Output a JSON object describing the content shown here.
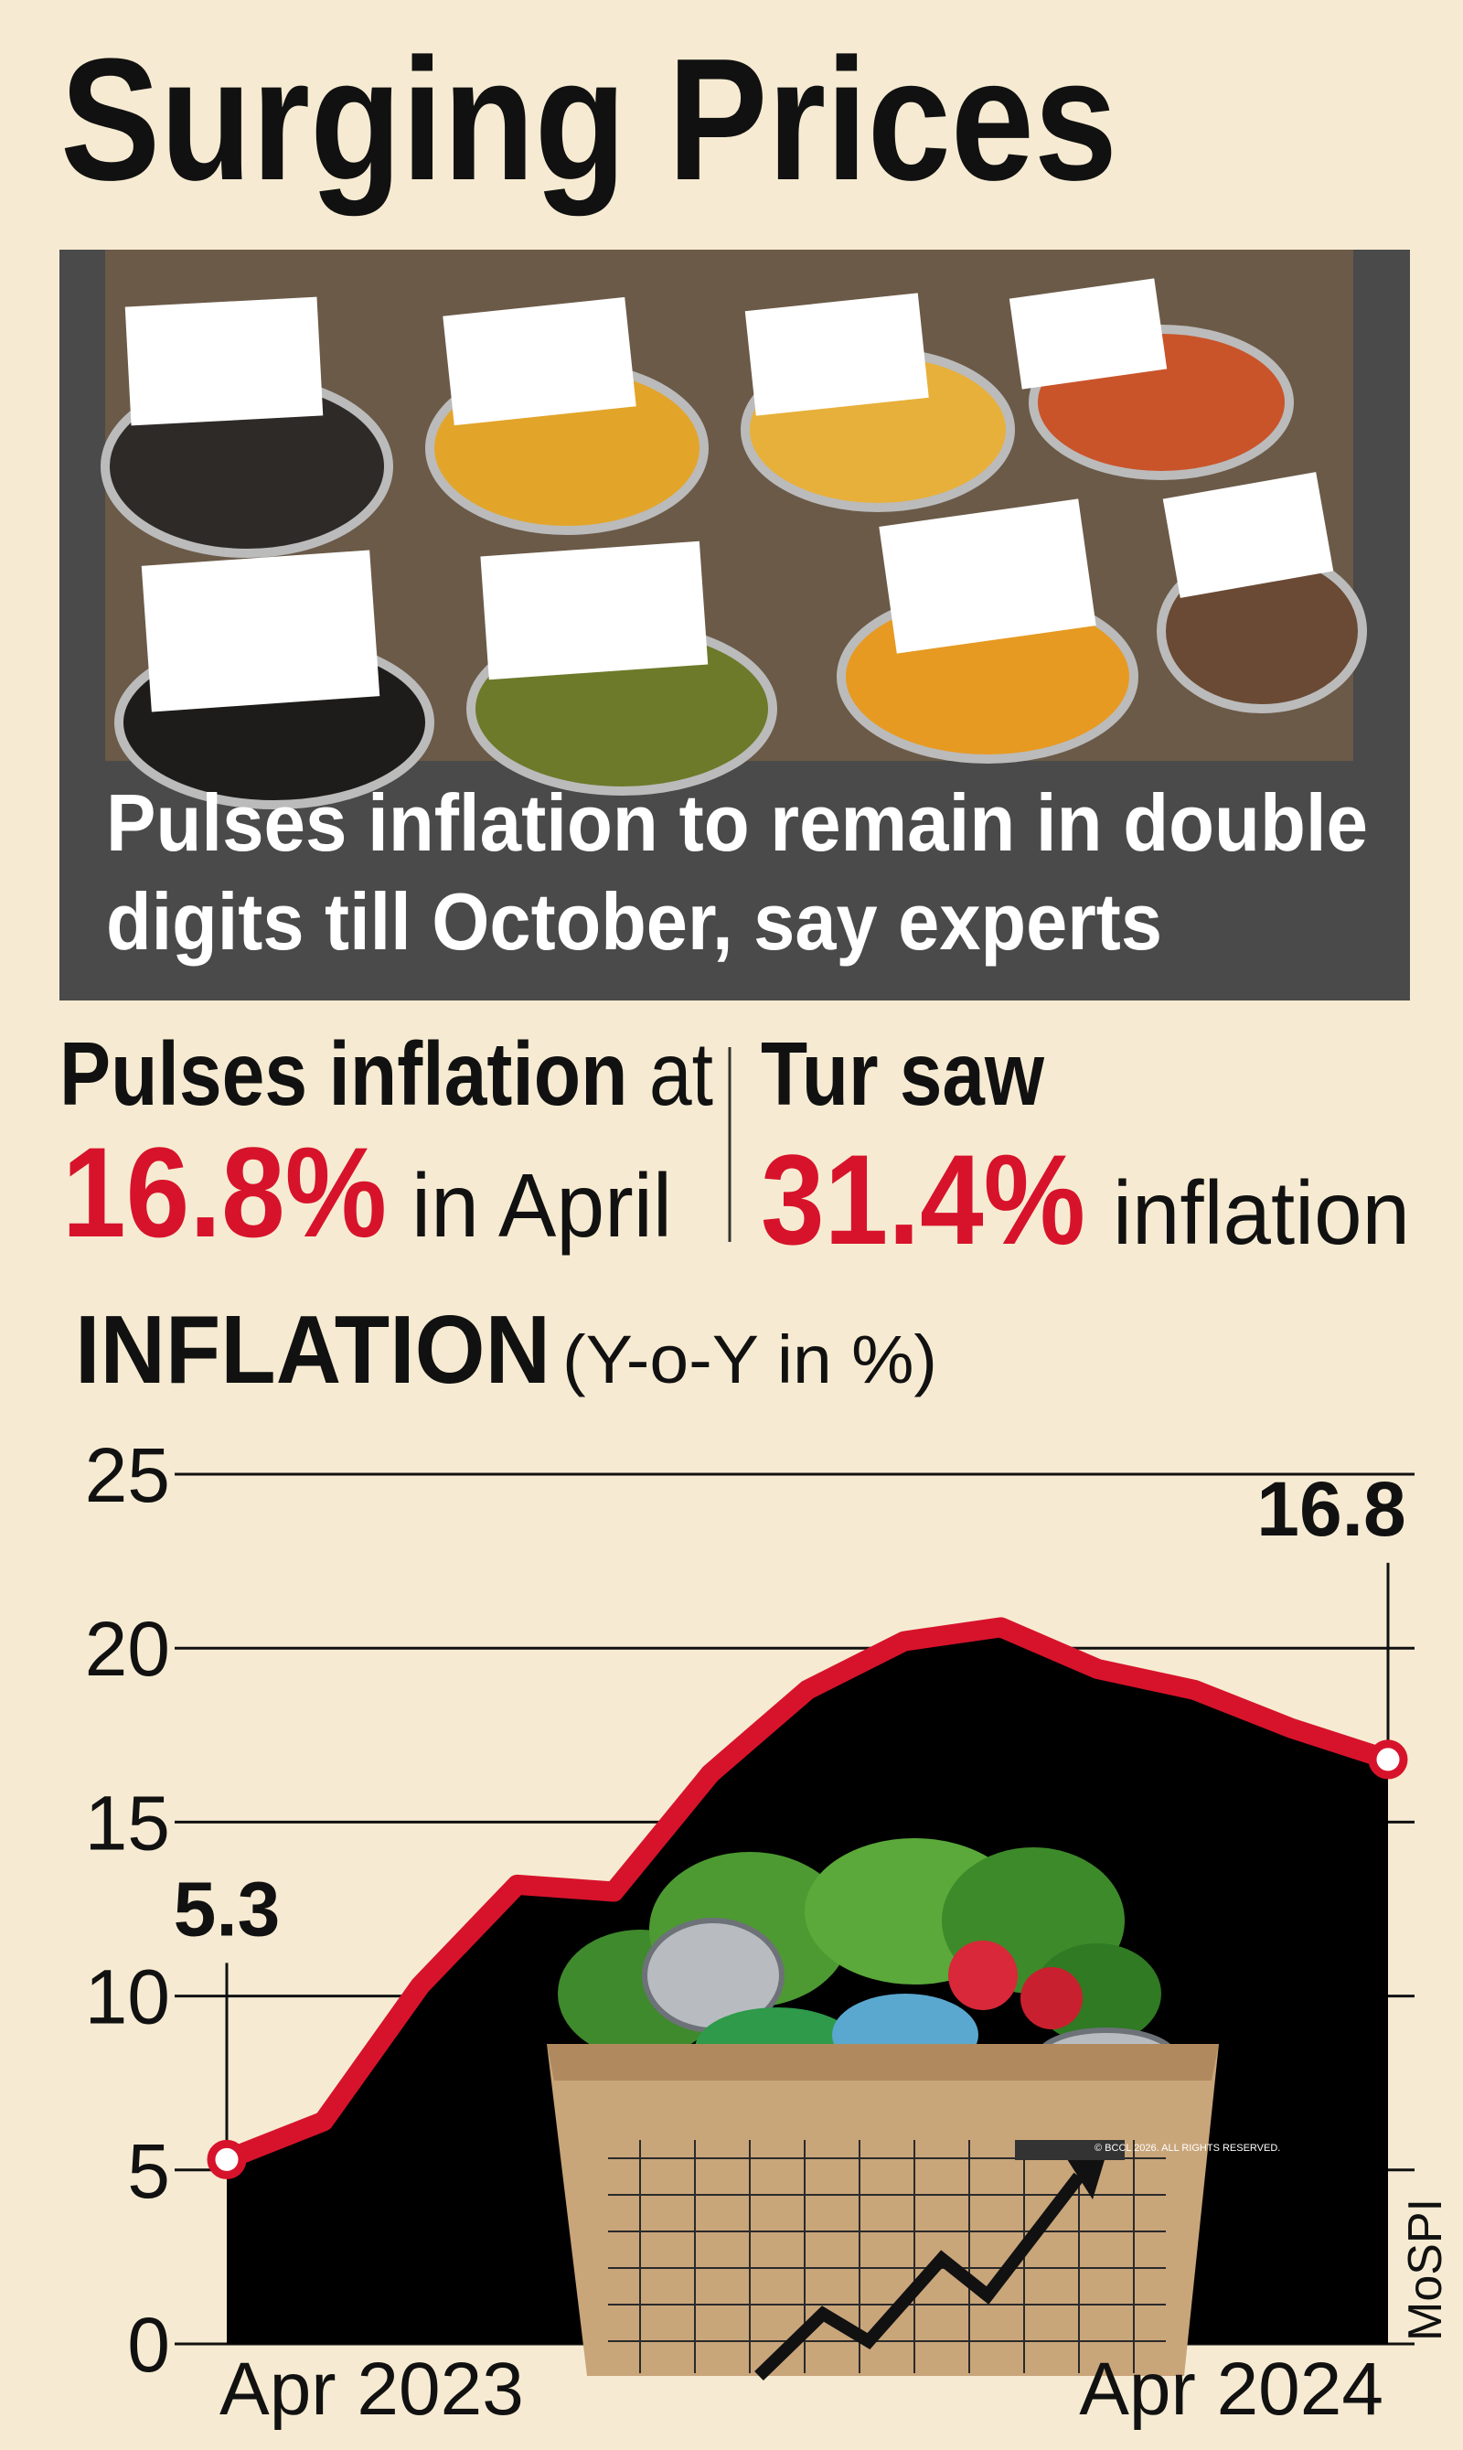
{
  "header": {
    "title": "Surging Prices"
  },
  "photo": {
    "caption": [
      "Pulses inflation to remain in double",
      "digits till October, say experts"
    ]
  },
  "stats": [
    {
      "label": [
        "Pulses inflation",
        "at"
      ],
      "value": "16.8%",
      "suffix": "in April"
    },
    {
      "label": [
        "Tur saw"
      ],
      "value": "31.4%",
      "suffix": "inflation"
    }
  ],
  "chart_data": {
    "type": "line",
    "title": "INFLATION",
    "subtitle": "(Y-o-Y in %)",
    "categories": [
      "Apr 2023",
      null,
      null,
      null,
      null,
      null,
      null,
      null,
      null,
      null,
      null,
      null,
      "Apr 2024"
    ],
    "values": [
      5.3,
      6.4,
      10.3,
      13.2,
      13.0,
      16.4,
      18.8,
      20.2,
      20.6,
      19.4,
      18.8,
      17.7,
      16.8
    ],
    "color": "#d7132b",
    "area_color": "#000000",
    "ylim": [
      0,
      25
    ],
    "yticks": [
      0,
      5,
      10,
      15,
      20,
      25
    ],
    "grid": true,
    "source": "MoSPI",
    "copyright": "© BCCL 2026. ALL RIGHTS RESERVED."
  }
}
